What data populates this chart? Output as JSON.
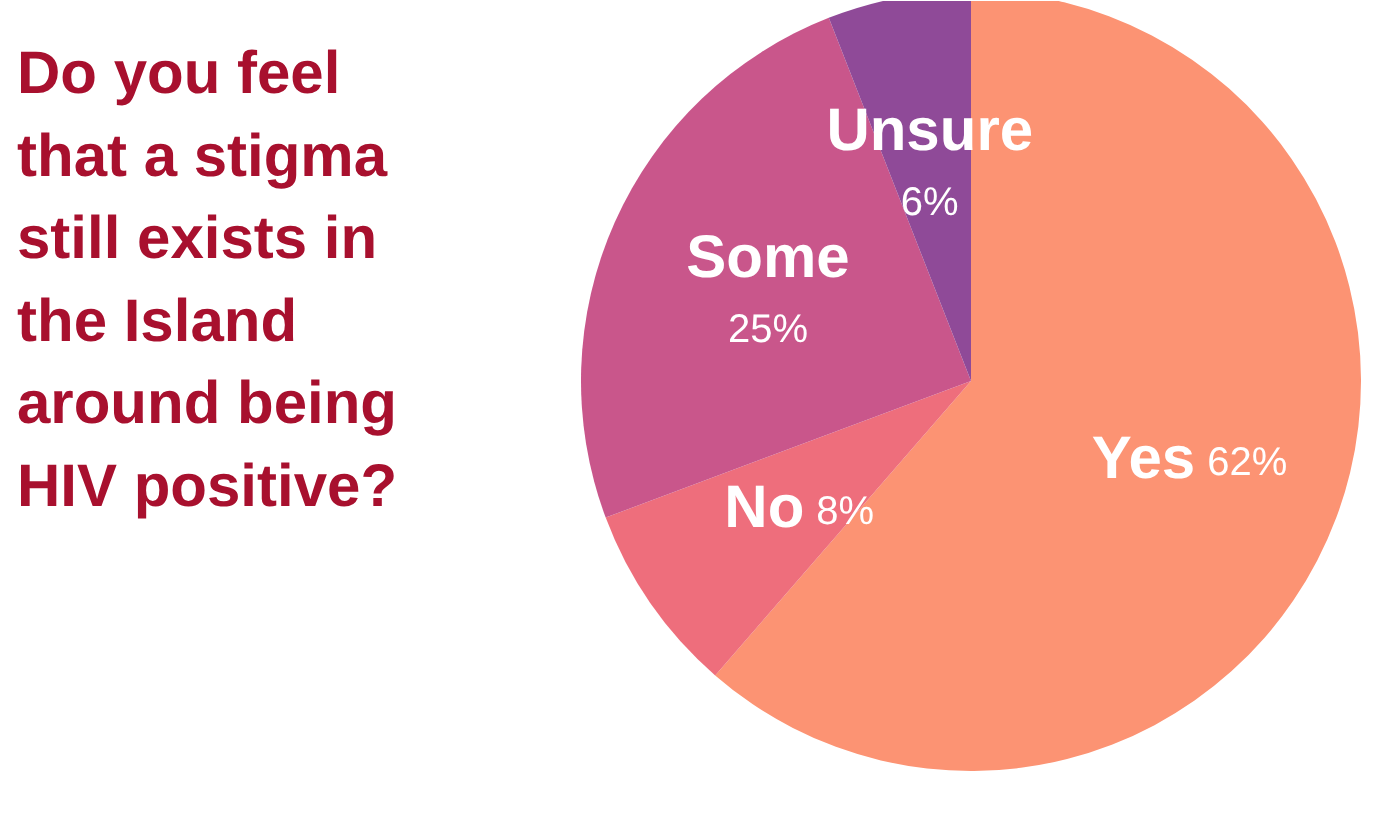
{
  "chart_data": {
    "type": "pie",
    "title": "Do you feel\nthat a stigma\nstill exists in\nthe Island\naround being\nHIV positive?",
    "categories": [
      "Yes",
      "No",
      "Some",
      "Unsure"
    ],
    "values": [
      62,
      8,
      25,
      6
    ],
    "colors": [
      "#fc9373",
      "#ee6e7c",
      "#c9568b",
      "#8f4a98"
    ],
    "value_labels": [
      "62%",
      "8%",
      "25%",
      "6%"
    ]
  }
}
